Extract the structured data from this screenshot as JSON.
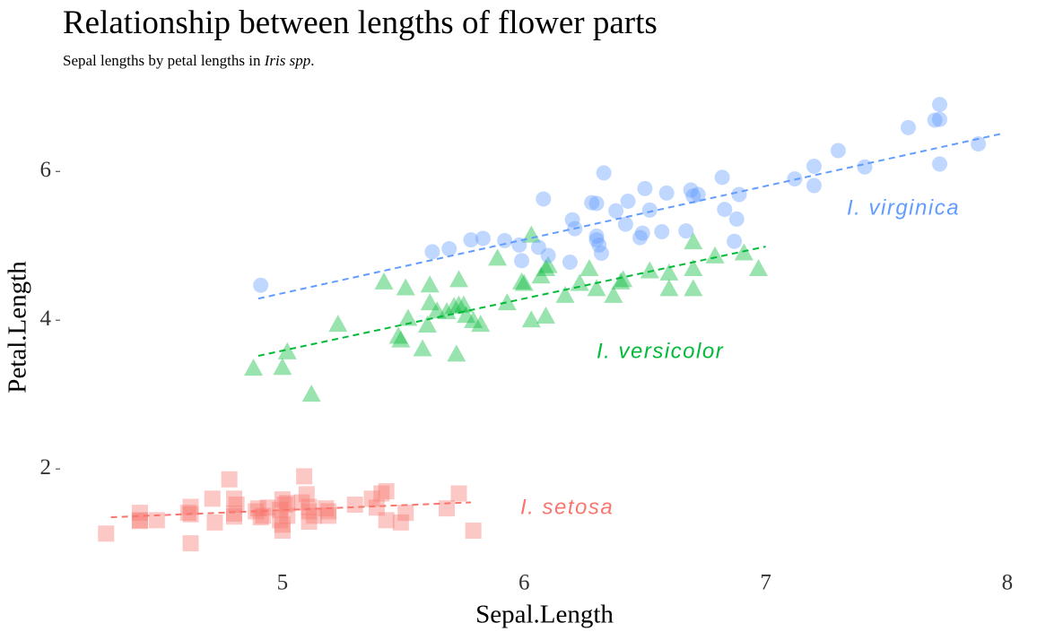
{
  "chart_data": {
    "type": "scatter",
    "title": "Relationship between lengths of flower parts",
    "subtitle": [
      "Sepal lengths by petal lengths in ",
      "Iris spp",
      "."
    ],
    "x_label": "Sepal.Length",
    "y_label": "Petal.Length",
    "xlim": [
      4.18,
      8.03
    ],
    "ylim": [
      0.7,
      7.1
    ],
    "xticks": [
      5,
      6,
      7,
      8
    ],
    "yticks": [
      2,
      4,
      6
    ],
    "series": [
      {
        "name": "I. setosa",
        "color": "#f8766d",
        "marker": "square",
        "x": [
          4.27,
          4.41,
          4.41,
          4.48,
          4.61,
          4.62,
          4.62,
          4.71,
          4.72,
          4.78,
          4.8,
          4.8,
          4.81,
          4.89,
          4.9,
          4.92,
          4.99,
          5.0,
          4.99,
          5.0,
          5.01,
          5.02,
          5.08,
          5.09,
          5.1,
          5.11,
          5.11,
          5.13,
          5.18,
          5.19,
          5.3,
          5.37,
          5.39,
          5.41,
          5.43,
          5.43,
          5.49,
          5.51,
          5.68,
          5.73,
          5.79,
          5.0,
          4.91,
          4.8,
          4.62,
          4.41,
          5.11,
          4.94,
          5.02,
          5.19
        ],
        "y": [
          1.13,
          1.41,
          1.3,
          1.31,
          1.41,
          1.49,
          1.0,
          1.6,
          1.28,
          1.86,
          1.6,
          1.36,
          1.52,
          1.43,
          1.47,
          1.37,
          1.45,
          1.59,
          1.31,
          1.17,
          1.52,
          1.37,
          1.55,
          1.9,
          1.66,
          1.43,
          1.49,
          1.37,
          1.47,
          1.43,
          1.52,
          1.6,
          1.48,
          1.67,
          1.7,
          1.31,
          1.28,
          1.41,
          1.47,
          1.67,
          1.17,
          1.25,
          1.35,
          1.4,
          1.39,
          1.31,
          1.29,
          1.48,
          1.54,
          1.37
        ],
        "fit": {
          "x": [
            4.29,
            5.78
          ],
          "y": [
            1.35,
            1.55
          ]
        }
      },
      {
        "name": "I. versicolor",
        "color": "#00ba38",
        "marker": "triangle",
        "x": [
          4.88,
          5.0,
          5.02,
          5.12,
          5.23,
          5.42,
          5.48,
          5.49,
          5.51,
          5.52,
          5.58,
          5.6,
          5.61,
          5.61,
          5.68,
          5.71,
          5.72,
          5.73,
          5.73,
          5.75,
          5.76,
          5.79,
          5.82,
          5.89,
          5.93,
          5.99,
          6.0,
          6.03,
          6.03,
          6.07,
          6.09,
          6.09,
          6.1,
          6.17,
          6.23,
          6.27,
          6.3,
          6.37,
          6.4,
          6.41,
          6.52,
          6.6,
          6.6,
          6.7,
          6.7,
          6.7,
          6.79,
          6.91,
          6.97,
          5.64
        ],
        "y": [
          3.35,
          3.36,
          3.57,
          3.0,
          3.94,
          4.51,
          3.78,
          3.73,
          4.43,
          4.02,
          3.61,
          3.93,
          4.23,
          4.47,
          4.11,
          4.18,
          3.54,
          4.2,
          4.54,
          4.2,
          4.06,
          3.99,
          3.94,
          4.83,
          4.23,
          4.51,
          4.49,
          5.14,
          4.0,
          4.59,
          4.05,
          4.69,
          4.73,
          4.33,
          4.49,
          4.69,
          4.42,
          4.33,
          4.51,
          4.54,
          4.66,
          4.63,
          4.42,
          4.69,
          4.42,
          5.05,
          4.86,
          4.9,
          4.69,
          4.12
        ],
        "fit": {
          "x": [
            4.9,
            7.0
          ],
          "y": [
            3.52,
            4.99
          ]
        }
      },
      {
        "name": "I. virginica",
        "color": "#619cff",
        "marker": "circle",
        "x": [
          4.91,
          5.62,
          5.69,
          5.78,
          5.83,
          5.92,
          5.98,
          5.99,
          6.08,
          6.1,
          6.19,
          6.2,
          6.28,
          6.3,
          6.3,
          6.31,
          6.32,
          6.33,
          6.38,
          6.42,
          6.43,
          6.49,
          6.5,
          6.52,
          6.57,
          6.59,
          6.67,
          6.69,
          6.7,
          6.72,
          6.82,
          6.83,
          6.88,
          6.89,
          6.87,
          7.12,
          7.2,
          7.2,
          7.3,
          7.41,
          7.59,
          7.7,
          7.72,
          7.72,
          7.72,
          7.88,
          6.06,
          6.3,
          6.48,
          6.21
        ],
        "y": [
          4.47,
          4.92,
          4.96,
          5.08,
          5.1,
          5.07,
          5.01,
          4.8,
          5.63,
          4.87,
          4.78,
          5.35,
          5.58,
          5.57,
          5.13,
          5.01,
          4.9,
          5.98,
          5.47,
          5.29,
          5.6,
          5.17,
          5.77,
          5.48,
          5.19,
          5.71,
          5.2,
          5.75,
          5.67,
          5.69,
          5.92,
          5.49,
          5.36,
          5.69,
          5.06,
          5.9,
          6.07,
          5.81,
          6.28,
          6.06,
          6.59,
          6.69,
          6.9,
          6.1,
          6.7,
          6.37,
          4.98,
          5.08,
          5.11,
          5.23
        ],
        "fit": {
          "x": [
            4.9,
            7.98
          ],
          "y": [
            4.29,
            6.51
          ]
        }
      }
    ]
  }
}
